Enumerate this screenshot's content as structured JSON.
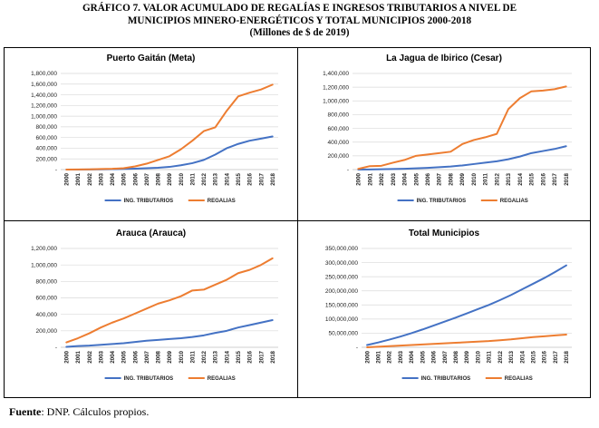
{
  "figure": {
    "title_line1": "GRÁFICO 7. VALOR ACUMULADO DE REGALÍAS E INGRESOS TRIBUTARIOS A NIVEL DE",
    "title_line2": "MUNICIPIOS MINERO-ENERGÉTICOS Y TOTAL MUNICIPIOS 2000-2018",
    "title_line3": "(Millones de $ de 2019)",
    "source_label": "Fuente",
    "source_text": ": DNP. Cálculos propios.",
    "colors": {
      "tributarios": "#4472C4",
      "regalias": "#ED7D31",
      "grid": "#d9d9d9",
      "axis": "#bfbfbf"
    }
  },
  "chart_data": [
    {
      "type": "line",
      "title": "Puerto Gaitán (Meta)",
      "categories": [
        "2000",
        "2001",
        "2002",
        "2003",
        "2004",
        "2005",
        "2006",
        "2007",
        "2008",
        "2009",
        "2010",
        "2011",
        "2012",
        "2013",
        "2014",
        "2015",
        "2016",
        "2017",
        "2018"
      ],
      "ylim": [
        0,
        1800000
      ],
      "yticks": [
        0,
        200000,
        400000,
        600000,
        800000,
        1000000,
        1200000,
        1400000,
        1600000,
        1800000
      ],
      "ytick_labels": [
        "-",
        "200,000",
        "400,000",
        "600,000",
        "800,000",
        "1,000,000",
        "1,200,000",
        "1,400,000",
        "1,600,000",
        "1,800,000"
      ],
      "grid": true,
      "legend_position": "bottom",
      "series": [
        {
          "name": "ING. TRIBUTARIOS",
          "values": [
            0,
            1000,
            3000,
            5000,
            8000,
            12000,
            18000,
            25000,
            35000,
            50000,
            80000,
            120000,
            180000,
            280000,
            400000,
            480000,
            540000,
            580000,
            620000
          ]
        },
        {
          "name": "REGALIAS",
          "values": [
            0,
            2000,
            5000,
            10000,
            15000,
            25000,
            60000,
            110000,
            180000,
            250000,
            380000,
            540000,
            720000,
            790000,
            1100000,
            1370000,
            1440000,
            1500000,
            1590000
          ]
        }
      ]
    },
    {
      "type": "line",
      "title": "La Jagua de Ibirico (Cesar)",
      "categories": [
        "2000",
        "2001",
        "2002",
        "2003",
        "2004",
        "2005",
        "2006",
        "2007",
        "2008",
        "2009",
        "2010",
        "2011",
        "2012",
        "2013",
        "2014",
        "2015",
        "2016",
        "2017",
        "2018"
      ],
      "ylim": [
        0,
        1400000
      ],
      "yticks": [
        0,
        200000,
        400000,
        600000,
        800000,
        1000000,
        1200000,
        1400000
      ],
      "ytick_labels": [
        "-",
        "200,000",
        "400,000",
        "600,000",
        "800,000",
        "1,000,000",
        "1,200,000",
        "1,400,000"
      ],
      "grid": true,
      "legend_position": "bottom",
      "series": [
        {
          "name": "ING. TRIBUTARIOS",
          "values": [
            0,
            2000,
            5000,
            8000,
            12000,
            18000,
            25000,
            35000,
            45000,
            60000,
            80000,
            100000,
            120000,
            150000,
            190000,
            240000,
            270000,
            300000,
            340000
          ]
        },
        {
          "name": "REGALIAS",
          "values": [
            10000,
            50000,
            55000,
            100000,
            140000,
            200000,
            220000,
            240000,
            260000,
            370000,
            430000,
            470000,
            520000,
            880000,
            1040000,
            1140000,
            1150000,
            1170000,
            1210000
          ]
        }
      ]
    },
    {
      "type": "line",
      "title": "Arauca (Arauca)",
      "categories": [
        "2000",
        "2001",
        "2002",
        "2003",
        "2004",
        "2005",
        "2006",
        "2007",
        "2008",
        "2009",
        "2010",
        "2011",
        "2012",
        "2013",
        "2014",
        "2015",
        "2016",
        "2017",
        "2018"
      ],
      "ylim": [
        0,
        1200000
      ],
      "yticks": [
        0,
        200000,
        400000,
        600000,
        800000,
        1000000,
        1200000
      ],
      "ytick_labels": [
        "-",
        "200,000",
        "400,000",
        "600,000",
        "800,000",
        "1,000,000",
        "1,200,000"
      ],
      "grid": true,
      "legend_position": "bottom",
      "series": [
        {
          "name": "ING. TRIBUTARIOS",
          "values": [
            5000,
            15000,
            20000,
            30000,
            40000,
            50000,
            65000,
            80000,
            90000,
            100000,
            110000,
            125000,
            145000,
            175000,
            200000,
            240000,
            270000,
            300000,
            330000
          ]
        },
        {
          "name": "REGALIAS",
          "values": [
            60000,
            110000,
            170000,
            240000,
            300000,
            350000,
            410000,
            470000,
            530000,
            570000,
            620000,
            690000,
            700000,
            760000,
            820000,
            900000,
            940000,
            1000000,
            1080000
          ]
        }
      ]
    },
    {
      "type": "line",
      "title": "Total Municipios",
      "categories": [
        "2000",
        "2001",
        "2002",
        "2003",
        "2004",
        "2005",
        "2006",
        "2007",
        "2008",
        "2009",
        "2010",
        "2011",
        "2012",
        "2013",
        "2014",
        "2015",
        "2016",
        "2017",
        "2018"
      ],
      "ylim": [
        0,
        350000000
      ],
      "yticks": [
        0,
        50000000,
        100000000,
        150000000,
        200000000,
        250000000,
        300000000,
        350000000
      ],
      "ytick_labels": [
        "-",
        "50,000,000",
        "100,000,000",
        "150,000,000",
        "200,000,000",
        "250,000,000",
        "300,000,000",
        "350,000,000"
      ],
      "grid": true,
      "legend_position": "bottom",
      "series": [
        {
          "name": "ING. TRIBUTARIOS",
          "values": [
            8000000,
            17000000,
            27000000,
            38000000,
            50000000,
            63000000,
            77000000,
            91000000,
            105000000,
            120000000,
            135000000,
            150000000,
            167000000,
            185000000,
            205000000,
            225000000,
            245000000,
            267000000,
            290000000
          ]
        },
        {
          "name": "REGALIAS",
          "values": [
            0,
            2000000,
            4000000,
            6000000,
            8000000,
            10000000,
            12000000,
            14000000,
            16000000,
            18000000,
            20000000,
            22000000,
            25000000,
            28000000,
            32000000,
            36000000,
            39000000,
            42000000,
            45000000
          ]
        }
      ]
    }
  ]
}
